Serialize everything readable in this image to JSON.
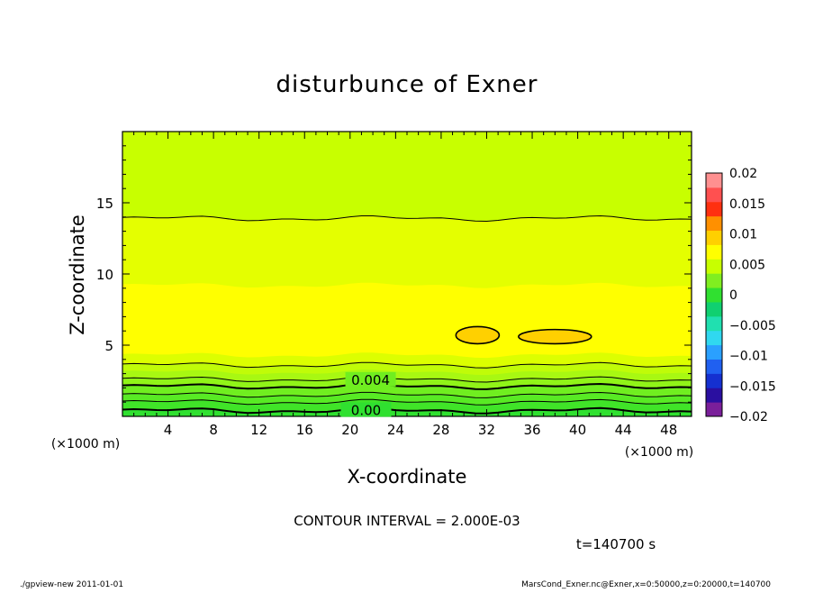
{
  "chart_data": {
    "type": "heatmap",
    "title": "disturbunce of Exner",
    "xlabel": "X-coordinate",
    "ylabel": "Z-coordinate",
    "x_unit": "(×1000 m)",
    "xlim": [
      0,
      50
    ],
    "ylim": [
      0,
      20
    ],
    "x_ticks": [
      4,
      8,
      12,
      16,
      20,
      24,
      28,
      32,
      36,
      40,
      44,
      48
    ],
    "y_ticks": [
      5,
      10,
      15
    ],
    "contour_interval_label": "CONTOUR INTERVAL = 2.000E-03",
    "contour_labels": [
      "0.004",
      "0.00"
    ],
    "time_label": "t=140700 s",
    "colorbar": {
      "ticks": [
        "0.02",
        "0.015",
        "0.01",
        "0.005",
        "0",
        "−0.005",
        "−0.01",
        "−0.015",
        "−0.02"
      ],
      "levels": [
        {
          "value": -0.02,
          "color": "#7a1f9a"
        },
        {
          "value": -0.0175,
          "color": "#2a0fa0"
        },
        {
          "value": -0.015,
          "color": "#1530d0"
        },
        {
          "value": -0.0125,
          "color": "#2060f0"
        },
        {
          "value": -0.01,
          "color": "#2aa0ff"
        },
        {
          "value": -0.0075,
          "color": "#30d8f0"
        },
        {
          "value": -0.005,
          "color": "#20e0b0"
        },
        {
          "value": -0.0025,
          "color": "#10d070"
        },
        {
          "value": 0.0,
          "color": "#30e030"
        },
        {
          "value": 0.0025,
          "color": "#80ee20"
        },
        {
          "value": 0.005,
          "color": "#c8ff00"
        },
        {
          "value": 0.0075,
          "color": "#ffff00"
        },
        {
          "value": 0.01,
          "color": "#ffd000"
        },
        {
          "value": 0.0125,
          "color": "#ff9000"
        },
        {
          "value": 0.015,
          "color": "#ff3010"
        },
        {
          "value": 0.0175,
          "color": "#ff5050"
        },
        {
          "value": 0.02,
          "color": "#ff9090"
        }
      ]
    },
    "bands_from_bottom": [
      {
        "z_top": 0.4,
        "color": "#30e030"
      },
      {
        "z_top": 1.0,
        "color": "#40e428"
      },
      {
        "z_top": 1.5,
        "color": "#58ea24"
      },
      {
        "z_top": 2.1,
        "color": "#70ee20"
      },
      {
        "z_top": 2.6,
        "color": "#90f418"
      },
      {
        "z_top": 3.1,
        "color": "#a8f812"
      },
      {
        "z_top": 3.6,
        "color": "#c0fc08"
      },
      {
        "z_top": 4.3,
        "color": "#dcff00"
      },
      {
        "z_top": 9.2,
        "color": "#ffff00"
      },
      {
        "z_top": 13.9,
        "color": "#e4ff00"
      },
      {
        "z_top": 20.0,
        "color": "#c8ff00"
      }
    ],
    "features": [
      {
        "x_center": 31.2,
        "z_center": 5.7,
        "x_halfwidth": 1.9,
        "z_halfheight": 0.6,
        "color": "#ffd000"
      },
      {
        "x_center": 38.0,
        "z_center": 5.6,
        "x_halfwidth": 3.2,
        "z_halfheight": 0.5,
        "color": "#ffd000"
      }
    ]
  },
  "footer": {
    "left": "./gpview-new  2011-01-01",
    "right": "MarsCond_Exner.nc@Exner,x=0:50000,z=0:20000,t=140700"
  }
}
